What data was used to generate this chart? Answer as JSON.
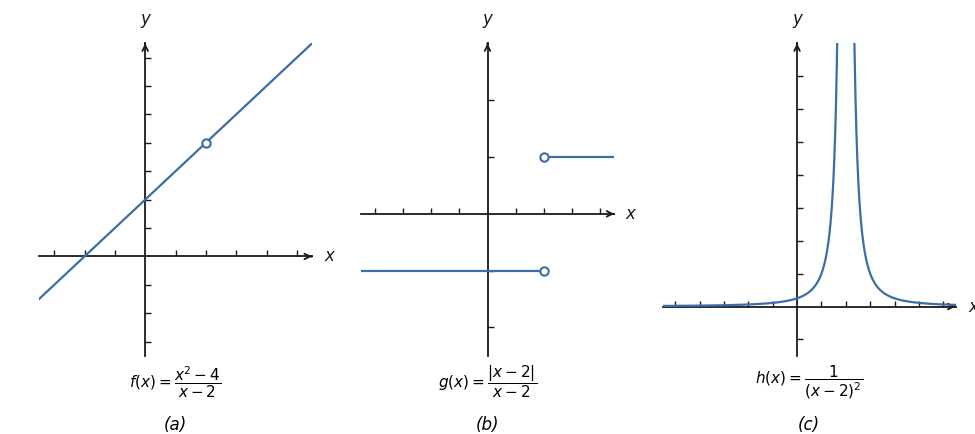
{
  "line_color": "#3c6ea5",
  "bg_color": "#ffffff",
  "axis_color": "#1a1a1a",
  "open_circle_facecolor": "#ffffff",
  "open_circle_edgecolor": "#3c6ea5",
  "open_circle_size": 6,
  "line_width": 1.6,
  "panel_a": {
    "xlim": [
      -3.5,
      5.5
    ],
    "ylim": [
      -3.5,
      7.5
    ],
    "x_ticks": [
      -3,
      -2,
      -1,
      1,
      2,
      3,
      4,
      5
    ],
    "y_ticks": [
      -3,
      -2,
      -1,
      1,
      2,
      3,
      4,
      5,
      6,
      7
    ],
    "hole_x": 2,
    "hole_y": 4,
    "label": "$f(x) = \\dfrac{x^2-4}{x-2}$",
    "sublabel": "(a)"
  },
  "panel_b": {
    "xlim": [
      -4.5,
      4.5
    ],
    "ylim": [
      -2.5,
      3.0
    ],
    "x_ticks": [
      -4,
      -3,
      -2,
      -1,
      1,
      2,
      3,
      4
    ],
    "y_ticks": [
      -2,
      -1,
      1,
      2
    ],
    "label": "$g(x) = \\dfrac{|x-2|}{x-2}$",
    "sublabel": "(b)"
  },
  "panel_c": {
    "xlim": [
      -5.5,
      6.5
    ],
    "ylim": [
      -1.5,
      8.0
    ],
    "x_ticks": [
      -5,
      -4,
      -3,
      -2,
      -1,
      1,
      2,
      3,
      4,
      5,
      6
    ],
    "y_ticks": [
      -1,
      1,
      2,
      3,
      4,
      5,
      6,
      7
    ],
    "label": "$h(x) = \\dfrac{1}{(x-2)^2}$",
    "sublabel": "(c)"
  },
  "label_fontsize": 11,
  "sublabel_fontsize": 12,
  "axis_label_fontsize": 12
}
